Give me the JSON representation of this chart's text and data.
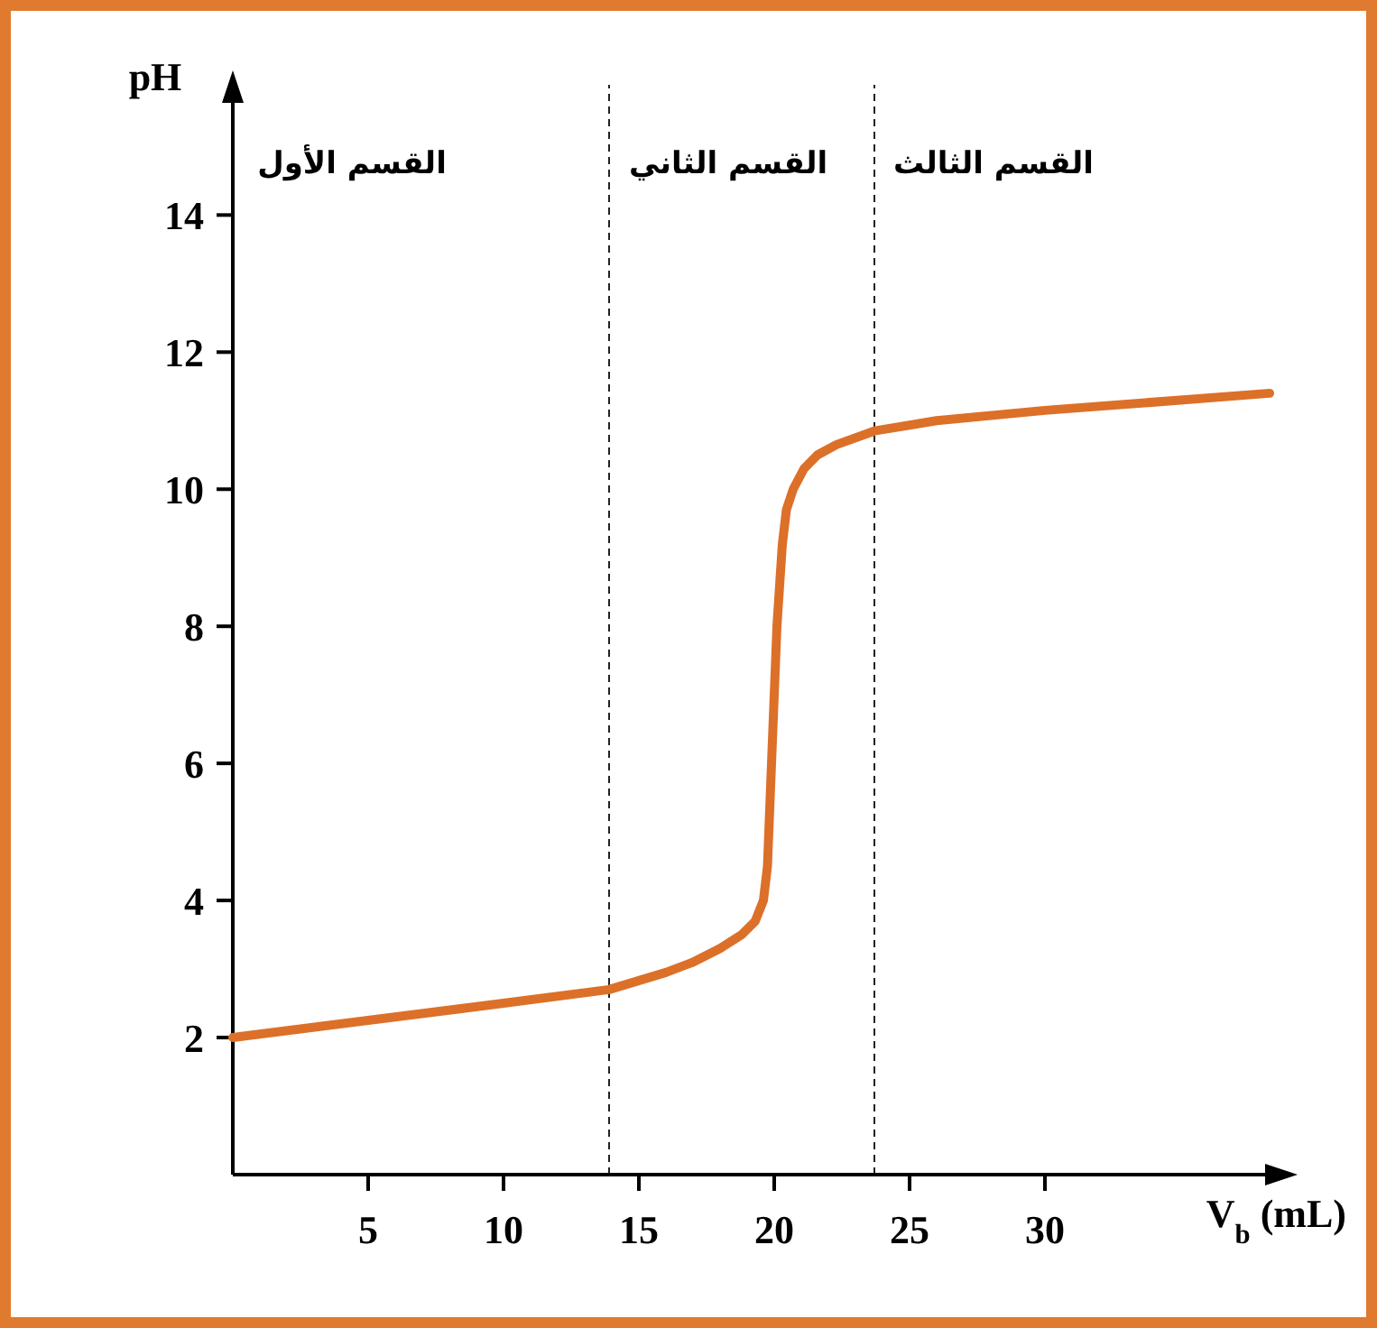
{
  "chart_data": {
    "type": "line",
    "xlabel": "V$_{b}$ (mL)",
    "ylabel": "pH",
    "annotations": [
      "القسم الأول",
      "القسم الثاني",
      "القسم الثالث"
    ],
    "xlim": [
      0,
      38.8
    ],
    "ylim": [
      0,
      15.9
    ],
    "xticks": [
      5,
      10,
      15,
      20,
      25,
      30
    ],
    "yticks": [
      2,
      4,
      6,
      8,
      10,
      12,
      14
    ],
    "ref_lines": [
      {
        "axis": "x",
        "value": 13.9,
        "line_style": "dashed"
      },
      {
        "axis": "x",
        "value": 23.7,
        "line_style": "dashed"
      }
    ],
    "grid": false,
    "marker": "none",
    "line_style": "solid",
    "series": [
      {
        "color": "#dc7029",
        "x": [
          0,
          5,
          10,
          13.9,
          16,
          17,
          18,
          18.8,
          19.3,
          19.6,
          19.75,
          19.85,
          19.95,
          20.1,
          20.3,
          20.45,
          20.7,
          21.1,
          21.6,
          22.3,
          23.7,
          26,
          30,
          35,
          38.3
        ],
        "values": [
          2.0,
          2.25,
          2.5,
          2.7,
          2.95,
          3.1,
          3.3,
          3.5,
          3.7,
          4.0,
          4.5,
          5.5,
          6.5,
          8.0,
          9.2,
          9.7,
          10.0,
          10.3,
          10.5,
          10.65,
          10.85,
          11.0,
          11.15,
          11.3,
          11.4
        ]
      }
    ]
  }
}
